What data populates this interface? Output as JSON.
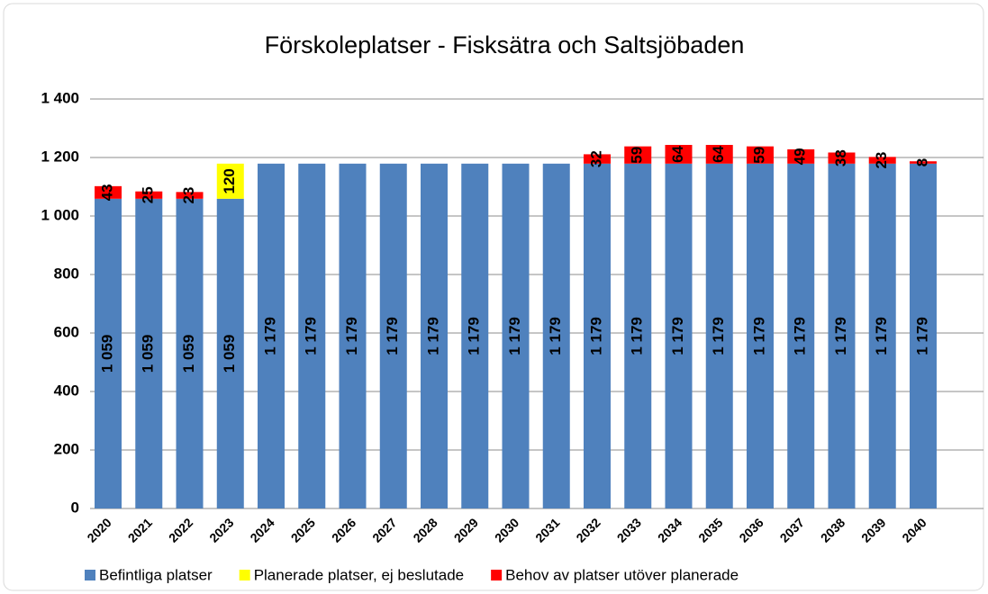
{
  "chart_data": {
    "type": "stacked_bar",
    "title": "Förskoleplatser - Fisksätra och Saltsjöbaden",
    "categories": [
      "2020",
      "2021",
      "2022",
      "2023",
      "2024",
      "2025",
      "2026",
      "2027",
      "2028",
      "2029",
      "2030",
      "2031",
      "2032",
      "2033",
      "2034",
      "2035",
      "2036",
      "2037",
      "2038",
      "2039",
      "2040"
    ],
    "series": [
      {
        "name": "Befintliga platser",
        "color": "#4f81bd",
        "values": [
          1059,
          1059,
          1059,
          1059,
          1179,
          1179,
          1179,
          1179,
          1179,
          1179,
          1179,
          1179,
          1179,
          1179,
          1179,
          1179,
          1179,
          1179,
          1179,
          1179,
          1179
        ],
        "value_labels": [
          "1 059",
          "1 059",
          "1 059",
          "1 059",
          "1 179",
          "1 179",
          "1 179",
          "1 179",
          "1 179",
          "1 179",
          "1 179",
          "1 179",
          "1 179",
          "1 179",
          "1 179",
          "1 179",
          "1 179",
          "1 179",
          "1 179",
          "1 179",
          "1 179"
        ]
      },
      {
        "name": "Planerade platser, ej beslutade",
        "color": "#ffff00",
        "values": [
          null,
          null,
          null,
          120,
          null,
          null,
          null,
          null,
          null,
          null,
          null,
          null,
          null,
          null,
          null,
          null,
          null,
          null,
          null,
          null,
          null
        ]
      },
      {
        "name": "Behov av platser utöver planerade",
        "color": "#ff0000",
        "values": [
          43,
          25,
          23,
          null,
          null,
          null,
          null,
          null,
          null,
          null,
          null,
          null,
          32,
          59,
          64,
          64,
          59,
          49,
          38,
          23,
          8
        ]
      }
    ],
    "ylim": [
      0,
      1400
    ],
    "yticks": [
      0,
      200,
      400,
      600,
      800,
      {
        "value": 1000,
        "label": "1 000"
      },
      {
        "value": 1200,
        "label": "1 200"
      },
      {
        "value": 1400,
        "label": "1 400"
      }
    ],
    "grid": true,
    "legend": "bottom"
  }
}
